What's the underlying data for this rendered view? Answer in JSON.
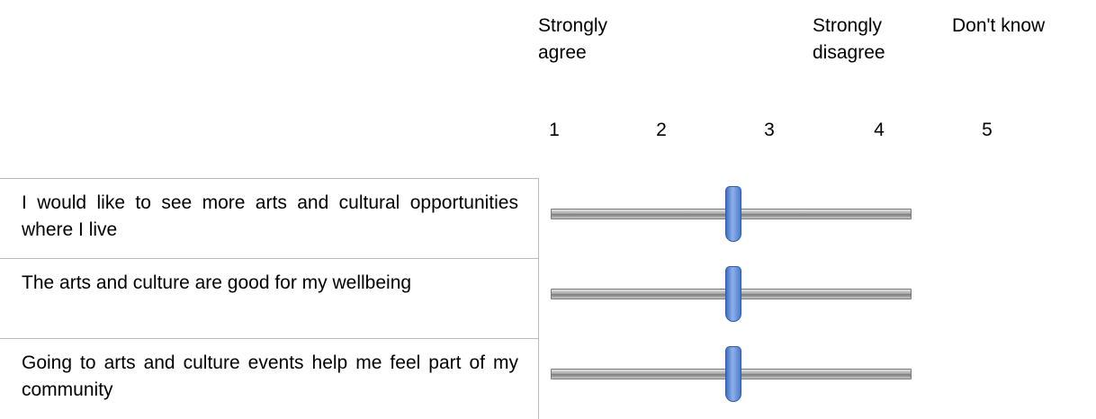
{
  "scale_headers": [
    "Strongly agree",
    "Strongly disagree",
    "Don't know"
  ],
  "scale_numbers": [
    1,
    2,
    3,
    4,
    5
  ],
  "statements": [
    "I would like to see more arts and cultural opportunities where I live",
    "The arts and culture are good for my wellbeing",
    "Going to arts and culture events help me feel part of my community"
  ]
}
